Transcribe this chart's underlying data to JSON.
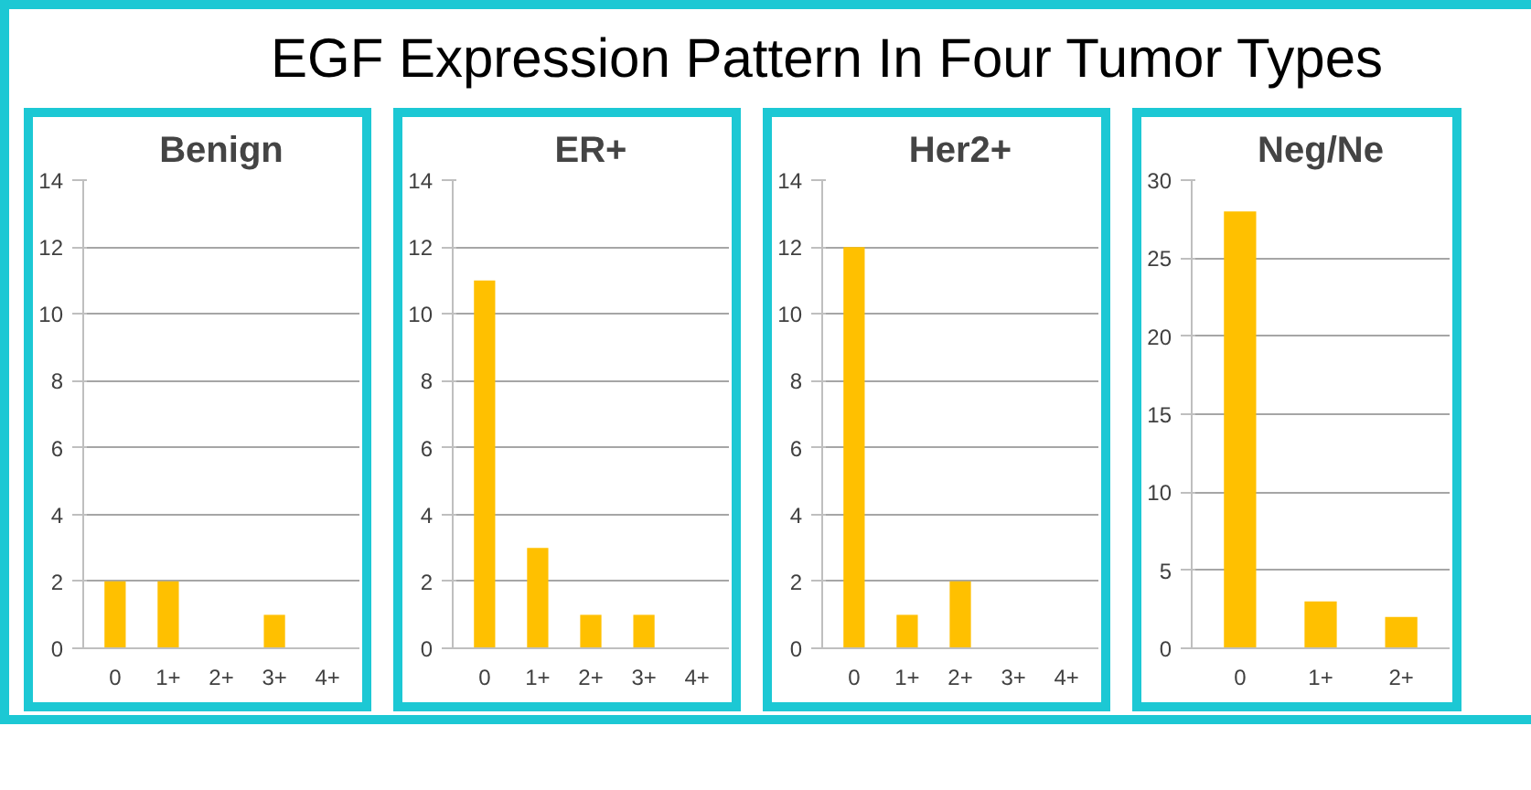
{
  "chart_data": [
    {
      "type": "other",
      "title": "EGF Expression Pattern In Four Tumor Types"
    },
    {
      "type": "bar",
      "title": "Benign",
      "categories": [
        "0",
        "1+",
        "2+",
        "3+",
        "4+"
      ],
      "values": [
        2,
        2,
        0,
        1,
        0
      ],
      "color": "#ffc000",
      "ylim": [
        0,
        14
      ],
      "yticks": [
        0,
        2,
        4,
        6,
        8,
        10,
        12,
        14
      ],
      "grid": "y"
    },
    {
      "type": "bar",
      "title": "ER+",
      "categories": [
        "0",
        "1+",
        "2+",
        "3+",
        "4+"
      ],
      "values": [
        11,
        3,
        1,
        1,
        0
      ],
      "color": "#ffc000",
      "ylim": [
        0,
        14
      ],
      "yticks": [
        0,
        2,
        4,
        6,
        8,
        10,
        12,
        14
      ],
      "grid": "y"
    },
    {
      "type": "bar",
      "title": "Her2+",
      "categories": [
        "0",
        "1+",
        "2+",
        "3+",
        "4+"
      ],
      "values": [
        12,
        1,
        2,
        0,
        0
      ],
      "color": "#ffc000",
      "ylim": [
        0,
        14
      ],
      "yticks": [
        0,
        2,
        4,
        6,
        8,
        10,
        12,
        14
      ],
      "grid": "y"
    },
    {
      "type": "bar",
      "title": "Neg/Ne",
      "categories": [
        "0",
        "1+",
        "2+"
      ],
      "values": [
        28,
        3,
        2
      ],
      "color": "#ffc000",
      "ylim": [
        0,
        30
      ],
      "yticks": [
        0,
        5,
        10,
        15,
        20,
        25,
        30
      ],
      "grid": "y"
    }
  ]
}
